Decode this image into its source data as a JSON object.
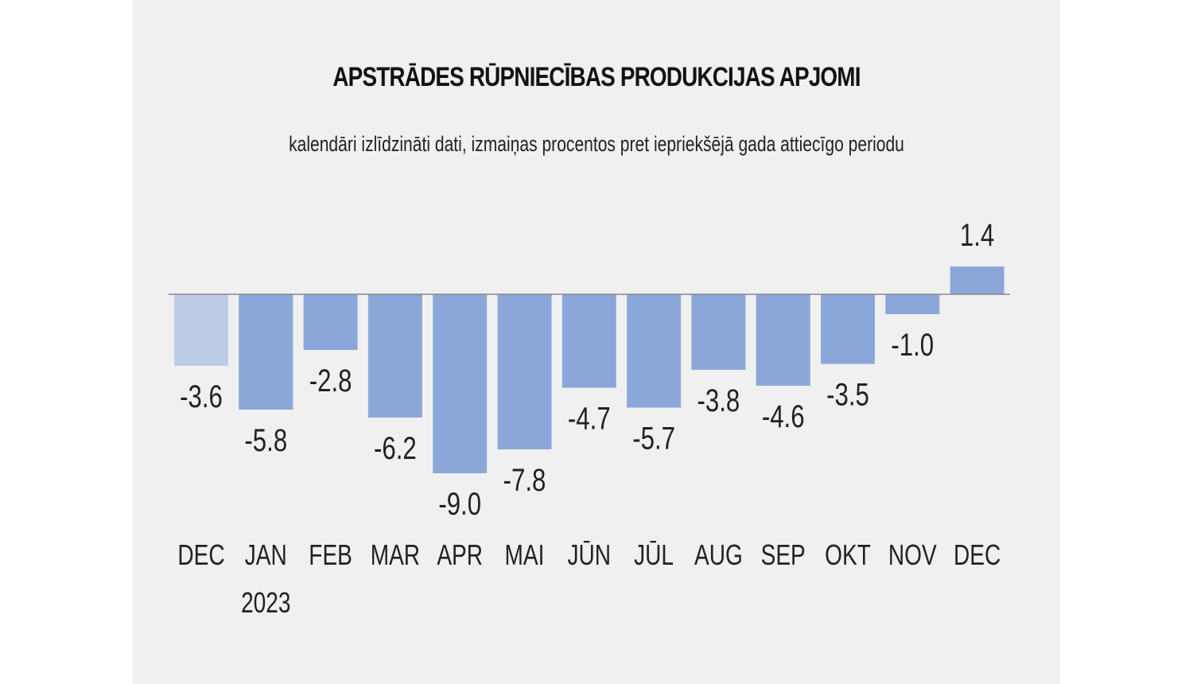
{
  "chart_data": {
    "type": "bar",
    "title": "APSTRĀDES RŪPNIECĪBAS PRODUKCIJAS APJOMI",
    "subtitle": "kalendāri izlīdzināti dati, izmaiņas procentos pret iepriekšējā gada attiecīgo periodu",
    "categories": [
      "DEC",
      "JAN",
      "FEB",
      "MAR",
      "APR",
      "MAI",
      "JŪN",
      "JŪL",
      "AUG",
      "SEP",
      "OKT",
      "NOV",
      "DEC"
    ],
    "year_labels": [
      "",
      "2023",
      "",
      "",
      "",
      "",
      "",
      "",
      "",
      "",
      "",
      "",
      ""
    ],
    "values": [
      -3.6,
      -5.8,
      -2.8,
      -6.2,
      -9.0,
      -7.8,
      -4.7,
      -5.7,
      -3.8,
      -4.6,
      -3.5,
      -1.0,
      1.4
    ],
    "value_labels": [
      "-3.6",
      "-5.8",
      "-2.8",
      "-6.2",
      "-9.0",
      "-7.8",
      "-4.7",
      "-5.7",
      "-3.8",
      "-4.6",
      "-3.5",
      "-1.0",
      "1.4"
    ],
    "highlight": [
      true,
      false,
      false,
      false,
      false,
      false,
      false,
      false,
      false,
      false,
      false,
      false,
      false
    ],
    "ylim": [
      -9.0,
      1.4
    ],
    "xlabel": "",
    "ylabel": "",
    "grid": false,
    "colors": {
      "bar": "#8ba7da",
      "bar_previous": "#bccbe6",
      "baseline": "#888888",
      "panel": "#f0f0f0"
    }
  }
}
